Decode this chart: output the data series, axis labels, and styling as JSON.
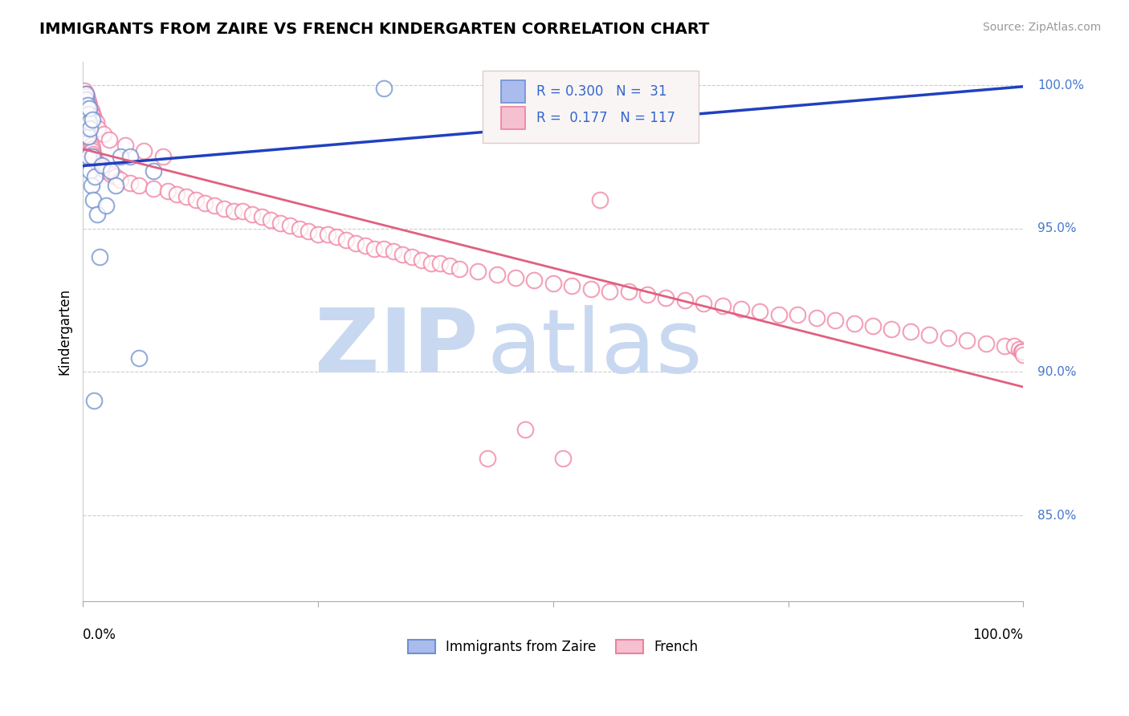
{
  "title": "IMMIGRANTS FROM ZAIRE VS FRENCH KINDERGARTEN CORRELATION CHART",
  "source": "Source: ZipAtlas.com",
  "ylabel": "Kindergarten",
  "legend_blue_r": "R = 0.300",
  "legend_blue_n": "N =  31",
  "legend_pink_r": "R =  0.177",
  "legend_pink_n": "N = 117",
  "legend1_label": "Immigrants from Zaire",
  "legend2_label": "French",
  "ytick_labels": [
    "100.0%",
    "95.0%",
    "90.0%",
    "85.0%"
  ],
  "ytick_values": [
    1.0,
    0.95,
    0.9,
    0.85
  ],
  "blue_color": "#7090D0",
  "pink_color": "#F080A0",
  "blue_line_color": "#2040C0",
  "pink_line_color": "#E06080",
  "watermark_zip": "ZIP",
  "watermark_atlas": "atlas",
  "watermark_color_zip": "#C8D8F0",
  "watermark_color_atlas": "#C8D8F0",
  "blue_scatter_x": [
    0.002,
    0.003,
    0.003,
    0.004,
    0.004,
    0.005,
    0.005,
    0.006,
    0.006,
    0.006,
    0.007,
    0.007,
    0.008,
    0.008,
    0.009,
    0.01,
    0.01,
    0.011,
    0.012,
    0.013,
    0.015,
    0.018,
    0.02,
    0.025,
    0.03,
    0.035,
    0.04,
    0.05,
    0.06,
    0.075,
    0.32
  ],
  "blue_scatter_y": [
    0.99,
    0.995,
    0.997,
    0.985,
    0.992,
    0.988,
    0.993,
    0.982,
    0.99,
    0.975,
    0.987,
    0.992,
    0.97,
    0.985,
    0.965,
    0.975,
    0.988,
    0.96,
    0.89,
    0.968,
    0.955,
    0.94,
    0.972,
    0.958,
    0.97,
    0.965,
    0.975,
    0.975,
    0.905,
    0.97,
    0.999
  ],
  "pink_scatter_x": [
    0.002,
    0.002,
    0.003,
    0.003,
    0.004,
    0.004,
    0.005,
    0.005,
    0.006,
    0.006,
    0.007,
    0.007,
    0.008,
    0.008,
    0.009,
    0.01,
    0.01,
    0.011,
    0.012,
    0.013,
    0.015,
    0.018,
    0.02,
    0.025,
    0.03,
    0.035,
    0.04,
    0.05,
    0.06,
    0.075,
    0.09,
    0.1,
    0.11,
    0.12,
    0.13,
    0.14,
    0.15,
    0.16,
    0.17,
    0.18,
    0.19,
    0.2,
    0.21,
    0.22,
    0.23,
    0.24,
    0.25,
    0.26,
    0.27,
    0.28,
    0.29,
    0.3,
    0.31,
    0.32,
    0.33,
    0.34,
    0.35,
    0.36,
    0.37,
    0.38,
    0.39,
    0.4,
    0.42,
    0.44,
    0.46,
    0.48,
    0.5,
    0.52,
    0.54,
    0.56,
    0.58,
    0.6,
    0.62,
    0.64,
    0.66,
    0.68,
    0.7,
    0.72,
    0.74,
    0.76,
    0.78,
    0.8,
    0.82,
    0.84,
    0.86,
    0.88,
    0.9,
    0.92,
    0.94,
    0.96,
    0.98,
    0.99,
    0.995,
    0.998,
    0.999,
    1.0,
    0.55,
    0.43,
    0.47,
    0.51,
    0.003,
    0.004,
    0.005,
    0.006,
    0.007,
    0.008,
    0.009,
    0.01,
    0.011,
    0.012,
    0.014,
    0.016,
    0.022,
    0.028,
    0.045,
    0.065,
    0.085
  ],
  "pink_scatter_y": [
    0.998,
    0.995,
    0.996,
    0.994,
    0.993,
    0.991,
    0.99,
    0.988,
    0.987,
    0.985,
    0.984,
    0.983,
    0.982,
    0.981,
    0.979,
    0.978,
    0.977,
    0.976,
    0.975,
    0.974,
    0.973,
    0.972,
    0.971,
    0.97,
    0.969,
    0.968,
    0.967,
    0.966,
    0.965,
    0.964,
    0.963,
    0.962,
    0.961,
    0.96,
    0.959,
    0.958,
    0.957,
    0.956,
    0.956,
    0.955,
    0.954,
    0.953,
    0.952,
    0.951,
    0.95,
    0.949,
    0.948,
    0.948,
    0.947,
    0.946,
    0.945,
    0.944,
    0.943,
    0.943,
    0.942,
    0.941,
    0.94,
    0.939,
    0.938,
    0.938,
    0.937,
    0.936,
    0.935,
    0.934,
    0.933,
    0.932,
    0.931,
    0.93,
    0.929,
    0.928,
    0.928,
    0.927,
    0.926,
    0.925,
    0.924,
    0.923,
    0.922,
    0.921,
    0.92,
    0.92,
    0.919,
    0.918,
    0.917,
    0.916,
    0.915,
    0.914,
    0.913,
    0.912,
    0.911,
    0.91,
    0.909,
    0.909,
    0.908,
    0.907,
    0.907,
    0.906,
    0.96,
    0.87,
    0.88,
    0.87,
    0.997,
    0.996,
    0.995,
    0.994,
    0.993,
    0.992,
    0.991,
    0.99,
    0.989,
    0.988,
    0.987,
    0.985,
    0.983,
    0.981,
    0.979,
    0.977,
    0.975
  ]
}
